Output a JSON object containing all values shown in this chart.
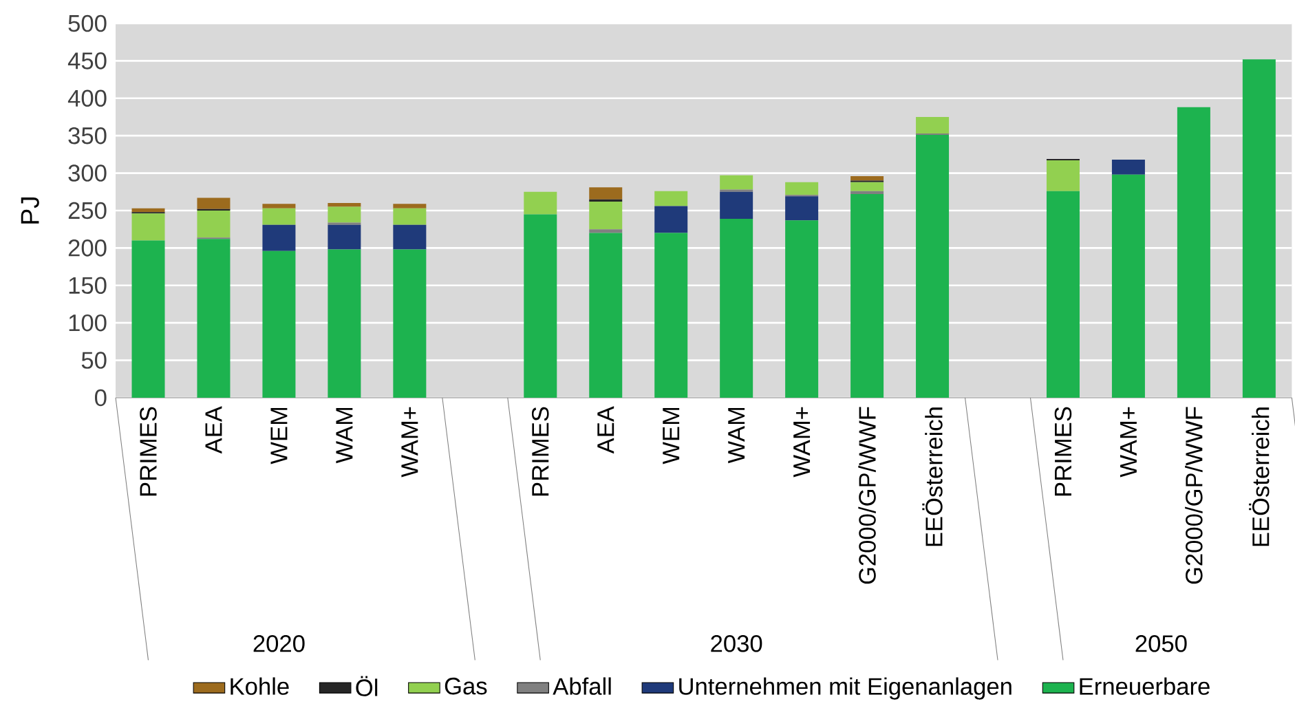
{
  "chart_data": {
    "type": "bar",
    "stacked": true,
    "ylabel": "PJ",
    "ylim": [
      0,
      500
    ],
    "yticks": [
      0,
      50,
      100,
      150,
      200,
      250,
      300,
      350,
      400,
      450,
      500
    ],
    "grid": "y",
    "legend": "bottom",
    "categories": [
      "PRIMES",
      "AEA",
      "WEM",
      "WAM",
      "WAM+",
      null,
      "PRIMES",
      "AEA",
      "WEM",
      "WAM",
      "WAM+",
      "G2000/GP/WWF",
      "EEÖsterreich",
      null,
      "PRIMES",
      "WAM+",
      "G2000/GP/WWF",
      "EEÖsterreich"
    ],
    "annotations": [
      "2020",
      "2030",
      "2050"
    ],
    "series": [
      {
        "name": "Erneuerbare",
        "color": "#1db34f",
        "values": [
          210,
          212,
          196,
          198,
          198,
          null,
          245,
          220,
          220,
          239,
          237,
          272,
          351,
          null,
          276,
          298,
          388,
          452
        ]
      },
      {
        "name": "Unternehmen mit Eigenanlagen",
        "color": "#1f3a7a",
        "values": [
          0,
          0,
          35,
          33,
          33,
          null,
          0,
          0,
          36,
          36,
          32,
          0,
          0,
          null,
          0,
          20,
          0,
          0
        ]
      },
      {
        "name": "Abfall",
        "color": "#808080",
        "values": [
          0,
          2,
          0,
          3,
          0,
          null,
          0,
          5,
          0,
          3,
          2,
          4,
          2,
          null,
          0,
          0,
          0,
          0
        ]
      },
      {
        "name": "Gas",
        "color": "#92d050",
        "values": [
          36,
          36,
          22,
          21,
          22,
          null,
          30,
          37,
          20,
          19,
          17,
          12,
          22,
          null,
          41,
          0,
          0,
          0
        ]
      },
      {
        "name": "Öl",
        "color": "#262626",
        "values": [
          2,
          2,
          0,
          0,
          0,
          null,
          0,
          3,
          0,
          0,
          0,
          2,
          0,
          null,
          2,
          0,
          0,
          0
        ]
      },
      {
        "name": "Kohle",
        "color": "#9c6b1e",
        "values": [
          5,
          15,
          6,
          5,
          6,
          null,
          0,
          16,
          0,
          0,
          0,
          6,
          0,
          null,
          0,
          0,
          0,
          0
        ]
      }
    ]
  }
}
